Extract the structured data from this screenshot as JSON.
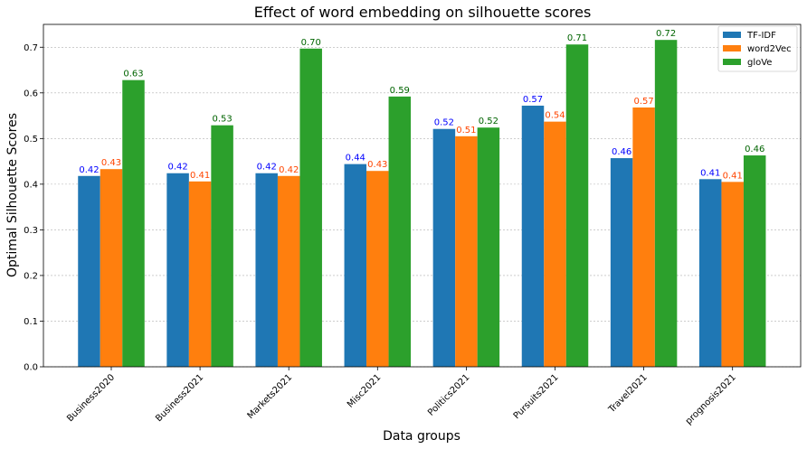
{
  "chart_data": {
    "type": "bar",
    "title": "Effect of word embedding on silhouette scores",
    "xlabel": "Data groups",
    "ylabel": "Optimal Silhouette Scores",
    "ylim": [
      0,
      0.75
    ],
    "yticks": [
      "0.0",
      "0.1",
      "0.2",
      "0.3",
      "0.4",
      "0.5",
      "0.6",
      "0.7"
    ],
    "grid": true,
    "legend_position": "top-right",
    "categories": [
      "Business2020",
      "Business2021",
      "Markets2021",
      "Misc2021",
      "Politics2021",
      "Pursuits2021",
      "Travel2021",
      "prognosis2021"
    ],
    "series": [
      {
        "name": "TF-IDF",
        "color": "#1f77b4",
        "label_color": "#0000ff",
        "values": [
          0.418,
          0.424,
          0.424,
          0.444,
          0.521,
          0.572,
          0.457,
          0.411
        ],
        "labels": [
          "0.42",
          "0.42",
          "0.42",
          "0.44",
          "0.52",
          "0.57",
          "0.46",
          "0.41"
        ]
      },
      {
        "name": "word2Vec",
        "color": "#ff7f0e",
        "label_color": "#ff4500",
        "values": [
          0.433,
          0.406,
          0.418,
          0.429,
          0.505,
          0.537,
          0.568,
          0.405
        ],
        "labels": [
          "0.43",
          "0.41",
          "0.42",
          "0.43",
          "0.51",
          "0.54",
          "0.57",
          "0.41"
        ]
      },
      {
        "name": "gloVe",
        "color": "#2ca02c",
        "label_color": "#006400",
        "values": [
          0.628,
          0.529,
          0.697,
          0.592,
          0.524,
          0.706,
          0.716,
          0.463
        ],
        "labels": [
          "0.63",
          "0.53",
          "0.70",
          "0.59",
          "0.52",
          "0.71",
          "0.72",
          "0.46"
        ]
      }
    ]
  }
}
